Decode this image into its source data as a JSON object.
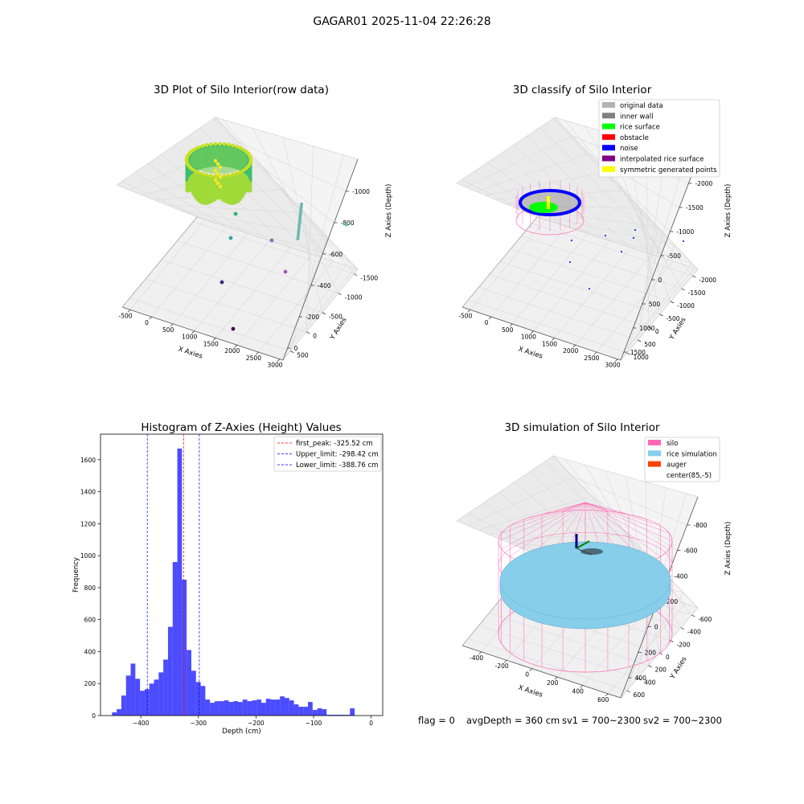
{
  "page_title": "GAGAR01 2025-11-04 22:26:28",
  "status_line": {
    "flag": "flag = 0",
    "avg_depth": "avgDepth = 360 cm",
    "sv1": "sv1 = 700~2300",
    "sv2": "sv2 = 700~2300"
  },
  "colors": {
    "original_data": "#b3b3b3",
    "inner_wall": "#808080",
    "rice_surface": "#00ff00",
    "obstacle": "#ff0000",
    "noise": "#0000ff",
    "interpolated": "#800080",
    "symmetric": "#ffff00",
    "silo": "#ff69b4",
    "rice_sim": "#87ceeb",
    "auger": "#ff4500",
    "hist_bar": "#0000ff",
    "grid": "#d9d9d9",
    "pane": "#f2f2f2"
  },
  "chart_data": [
    {
      "type": "scatter3d",
      "title": "3D Plot of Silo Interior(row data)",
      "xlabel": "X Axies",
      "ylabel": "Y Axies",
      "zlabel": "Z Axies (Depth)",
      "x_ticks": [
        "-500",
        "0",
        "500",
        "1000",
        "1500",
        "2000",
        "2500",
        "3000"
      ],
      "y_ticks": [
        "500",
        "0",
        "-500",
        "-1000",
        "-1500"
      ],
      "z_ticks": [
        "0",
        "-200",
        "-400",
        "-600",
        "-800",
        "-1000"
      ],
      "xlim": [
        -600,
        3100
      ],
      "ylim": [
        -1700,
        700
      ],
      "zlim": [
        -1100,
        50
      ],
      "colormap": "viridis",
      "outliers": [
        {
          "x": 0,
          "y": 0,
          "z": -300
        },
        {
          "x": 0,
          "y": 0,
          "z": -500
        },
        {
          "x": 1000,
          "y": 0,
          "z": -600
        },
        {
          "x": 1800,
          "y": 0,
          "z": -600
        },
        {
          "x": 500,
          "y": 0,
          "z": -900
        },
        {
          "x": 1500,
          "y": -200,
          "z": -800
        },
        {
          "x": 1500,
          "y": -1000,
          "z": -800
        },
        {
          "x": 3000,
          "y": 500,
          "z": -500
        }
      ]
    },
    {
      "type": "scatter3d",
      "title": "3D classify of Silo Interior",
      "xlabel": "X Axies",
      "ylabel": "Y Axies",
      "zlabel": "Z Axies (Depth)",
      "x_ticks": [
        "-500",
        "0",
        "500",
        "1000",
        "1500",
        "2000",
        "2500",
        "3000"
      ],
      "y_ticks": [
        "1000",
        "500",
        "0",
        "-500",
        "-1000",
        "-1500",
        "-2000"
      ],
      "z_ticks": [
        "1500",
        "1000",
        "500",
        "0",
        "-500",
        "-1000",
        "-1500",
        "-2000"
      ],
      "xlim": [
        -600,
        3100
      ],
      "ylim": [
        -2200,
        1300
      ],
      "zlim": [
        -2100,
        1600
      ],
      "legend": [
        {
          "label": "original data",
          "color": "#b3b3b3"
        },
        {
          "label": "inner wall",
          "color": "#808080"
        },
        {
          "label": "rice surface",
          "color": "#00ff00"
        },
        {
          "label": "obstacle",
          "color": "#ff0000"
        },
        {
          "label": "noise",
          "color": "#0000ff"
        },
        {
          "label": "interpolated rice surface",
          "color": "#800080"
        },
        {
          "label": "symmetric generated points",
          "color": "#ffff00"
        }
      ],
      "legend_position": "upper right"
    },
    {
      "type": "bar",
      "title": "Histogram of Z-Axies (Height) Values",
      "xlabel": "Depth (cm)",
      "ylabel": "Frequency",
      "xlim": [
        -470,
        20
      ],
      "ylim": [
        0,
        1760
      ],
      "x_ticks": [
        -400,
        -300,
        -200,
        -100,
        0
      ],
      "y_ticks": [
        0,
        200,
        400,
        600,
        800,
        1000,
        1200,
        1400,
        1600
      ],
      "bin_left": -450,
      "bin_width": 8.1,
      "values": [
        20,
        40,
        125,
        250,
        325,
        230,
        155,
        165,
        200,
        225,
        270,
        350,
        555,
        960,
        1670,
        850,
        410,
        280,
        210,
        185,
        100,
        80,
        90,
        90,
        95,
        85,
        90,
        85,
        100,
        90,
        95,
        100,
        80,
        105,
        100,
        100,
        120,
        110,
        95,
        70,
        55,
        55,
        85,
        35,
        45,
        40,
        5,
        5,
        5,
        5,
        5,
        45
      ],
      "lines": [
        {
          "label": "first_peak: -325.52 cm",
          "x": -325.52,
          "color": "#ff0000"
        },
        {
          "label": "Upper_limit: -298.42 cm",
          "x": -298.42,
          "color": "#0000ff"
        },
        {
          "label": "Lower_limit: -388.76 cm",
          "x": -388.76,
          "color": "#0000ff"
        }
      ],
      "legend_position": "upper right"
    },
    {
      "type": "surface3d",
      "title": "3D simulation of Silo Interior",
      "xlabel": "X Axies",
      "ylabel": "Y Axies",
      "zlabel": "Z Axies (Depth)",
      "x_ticks": [
        "-400",
        "-200",
        "0",
        "200",
        "400",
        "600"
      ],
      "y_ticks": [
        "600",
        "400",
        "200",
        "0",
        "-200",
        "-400",
        "-600"
      ],
      "z_ticks": [
        "400",
        "200",
        "0",
        "-200",
        "-400",
        "-600",
        "-800"
      ],
      "xlim": [
        -650,
        750
      ],
      "ylim": [
        -700,
        700
      ],
      "zlim": [
        -900,
        450
      ],
      "legend": [
        {
          "label": "silo",
          "color": "#ff69b4"
        },
        {
          "label": "rice simulation",
          "color": "#87ceeb"
        },
        {
          "label": "auger",
          "color": "#ff4500"
        },
        {
          "label": "center(85,-5)",
          "color": ""
        }
      ],
      "legend_position": "upper right"
    }
  ]
}
